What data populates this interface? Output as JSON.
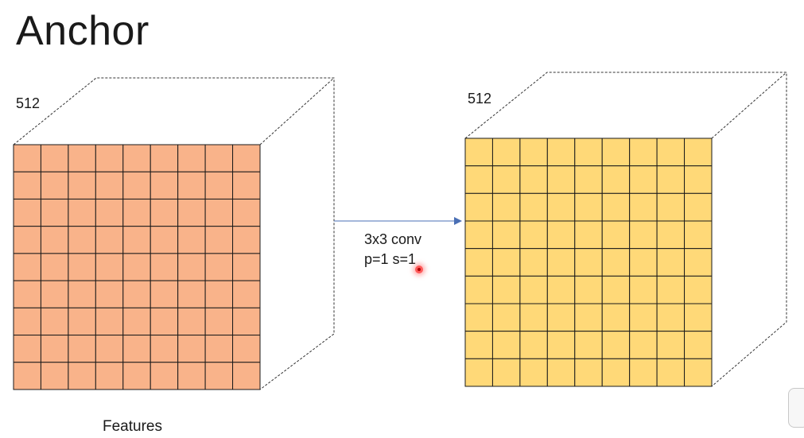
{
  "slide": {
    "title": "Anchor"
  },
  "left_block": {
    "depth_label": "512",
    "caption": "Features",
    "grid_rows": 9,
    "grid_cols": 9,
    "fill_color": "#F9B38A",
    "line_color": "#1a1a1a"
  },
  "right_block": {
    "depth_label": "512",
    "grid_rows": 9,
    "grid_cols": 9,
    "fill_color": "#FFD978",
    "line_color": "#1a1a1a"
  },
  "operation": {
    "line1": "3x3 conv",
    "line2": "p=1 s=1",
    "arrow_color": "#4A6FB5"
  }
}
